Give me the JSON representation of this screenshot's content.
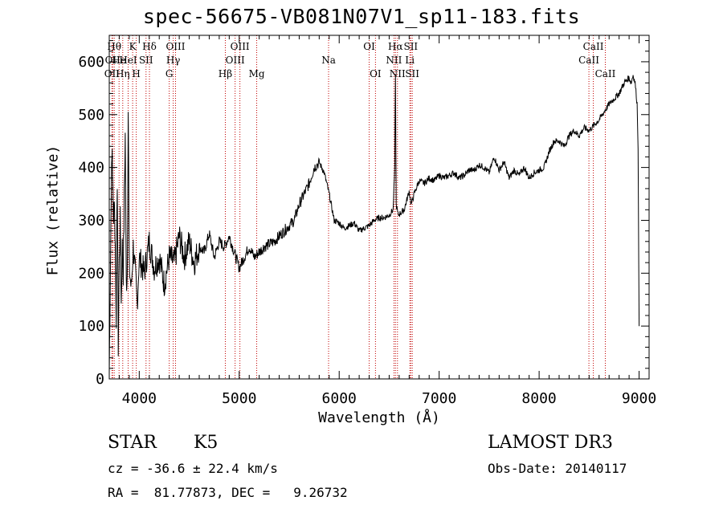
{
  "title": "spec-56675-VB081N07V1_sp11-183.fits",
  "info": {
    "class": "STAR",
    "subclass": "K5",
    "survey": "LAMOST DR3",
    "cz": "cz = -36.6 ± 22.4 km/s",
    "obs_date": "Obs-Date: 20140117",
    "coords": "RA =  81.77873, DEC =   9.26732"
  },
  "chart_data": {
    "type": "line",
    "title": "spec-56675-VB081N07V1_sp11-183.fits",
    "xlabel": "Wavelength (Å)",
    "ylabel": "Flux (relative)",
    "xlim": [
      3700,
      9100
    ],
    "ylim": [
      0,
      650
    ],
    "xticks": [
      4000,
      5000,
      6000,
      7000,
      8000,
      9000
    ],
    "yticks": [
      0,
      100,
      200,
      300,
      400,
      500,
      600
    ],
    "grid": false,
    "series": [
      {
        "color": "#000000",
        "x": [
          3700,
          3710,
          3720,
          3730,
          3740,
          3750,
          3760,
          3770,
          3780,
          3790,
          3800,
          3810,
          3820,
          3830,
          3840,
          3850,
          3860,
          3870,
          3880,
          3890,
          3900,
          3920,
          3940,
          3960,
          3980,
          4000,
          4050,
          4100,
          4150,
          4200,
          4250,
          4300,
          4350,
          4400,
          4450,
          4500,
          4550,
          4600,
          4650,
          4700,
          4750,
          4800,
          4850,
          4900,
          4950,
          5000,
          5050,
          5100,
          5150,
          5200,
          5250,
          5300,
          5350,
          5400,
          5450,
          5500,
          5550,
          5600,
          5650,
          5700,
          5750,
          5800,
          5850,
          5900,
          5950,
          6000,
          6050,
          6100,
          6150,
          6200,
          6250,
          6300,
          6350,
          6400,
          6450,
          6500,
          6540,
          6556,
          6563,
          6570,
          6590,
          6620,
          6650,
          6700,
          6720,
          6750,
          6800,
          6850,
          6900,
          6950,
          7000,
          7050,
          7100,
          7150,
          7200,
          7250,
          7300,
          7350,
          7400,
          7450,
          7500,
          7550,
          7600,
          7650,
          7700,
          7750,
          7800,
          7850,
          7900,
          7950,
          8000,
          8050,
          8100,
          8150,
          8200,
          8250,
          8300,
          8350,
          8400,
          8450,
          8500,
          8550,
          8600,
          8650,
          8700,
          8750,
          8800,
          8850,
          8900,
          8920,
          8940,
          8960,
          8980,
          8990,
          9000
        ],
        "y": [
          10,
          180,
          360,
          440,
          300,
          350,
          250,
          120,
          380,
          60,
          220,
          300,
          140,
          250,
          200,
          340,
          460,
          180,
          200,
          510,
          210,
          170,
          250,
          200,
          140,
          230,
          200,
          260,
          210,
          230,
          180,
          230,
          220,
          270,
          230,
          260,
          220,
          250,
          240,
          275,
          230,
          260,
          250,
          270,
          240,
          210,
          230,
          250,
          230,
          240,
          250,
          255,
          260,
          270,
          280,
          290,
          300,
          330,
          350,
          370,
          400,
          410,
          390,
          350,
          300,
          295,
          285,
          290,
          295,
          280,
          285,
          290,
          300,
          305,
          305,
          310,
          320,
          400,
          580,
          330,
          310,
          315,
          320,
          355,
          330,
          350,
          375,
          370,
          380,
          375,
          385,
          380,
          385,
          390,
          380,
          385,
          395,
          395,
          405,
          400,
          390,
          420,
          395,
          410,
          380,
          395,
          385,
          400,
          380,
          390,
          395,
          400,
          430,
          450,
          450,
          440,
          460,
          470,
          460,
          475,
          470,
          480,
          490,
          505,
          520,
          530,
          540,
          560,
          570,
          560,
          575,
          560,
          520,
          440,
          100
        ]
      }
    ],
    "lines": [
      {
        "wl": 3727,
        "label": "OII",
        "row": 3
      },
      {
        "wl": 3734,
        "label": "OII",
        "row": 2
      },
      {
        "wl": 3750,
        "label": "Hθ",
        "row": 1
      },
      {
        "wl": 3798,
        "label": "He",
        "row": 2
      },
      {
        "wl": 3835,
        "label": "Hη",
        "row": 3
      },
      {
        "wl": 3889,
        "label": "HeI",
        "row": 2
      },
      {
        "wl": 3934,
        "label": "K",
        "row": 1
      },
      {
        "wl": 3970,
        "label": "H",
        "row": 3
      },
      {
        "wl": 4068,
        "label": "SII",
        "row": 2
      },
      {
        "wl": 4102,
        "label": "Hδ",
        "row": 1
      },
      {
        "wl": 4300,
        "label": "G",
        "row": 3
      },
      {
        "wl": 4340,
        "label": "Hγ",
        "row": 2
      },
      {
        "wl": 4363,
        "label": "OIII",
        "row": 1
      },
      {
        "wl": 4861,
        "label": "Hβ",
        "row": 3
      },
      {
        "wl": 4959,
        "label": "OIII",
        "row": 2
      },
      {
        "wl": 5007,
        "label": "OIII",
        "row": 1
      },
      {
        "wl": 5175,
        "label": "Mg",
        "row": 3
      },
      {
        "wl": 5894,
        "label": "Na",
        "row": 2
      },
      {
        "wl": 6300,
        "label": "OI",
        "row": 1
      },
      {
        "wl": 6363,
        "label": "OI",
        "row": 3
      },
      {
        "wl": 6548,
        "label": "NII",
        "row": 2
      },
      {
        "wl": 6563,
        "label": "Hα",
        "row": 1
      },
      {
        "wl": 6583,
        "label": "NII",
        "row": 3
      },
      {
        "wl": 6707,
        "label": "Li",
        "row": 2
      },
      {
        "wl": 6716,
        "label": "SII",
        "row": 1
      },
      {
        "wl": 6731,
        "label": "SII",
        "row": 3
      },
      {
        "wl": 8498,
        "label": "CaII",
        "row": 2
      },
      {
        "wl": 8542,
        "label": "CaII",
        "row": 1
      },
      {
        "wl": 8662,
        "label": "CaII",
        "row": 3
      }
    ]
  }
}
